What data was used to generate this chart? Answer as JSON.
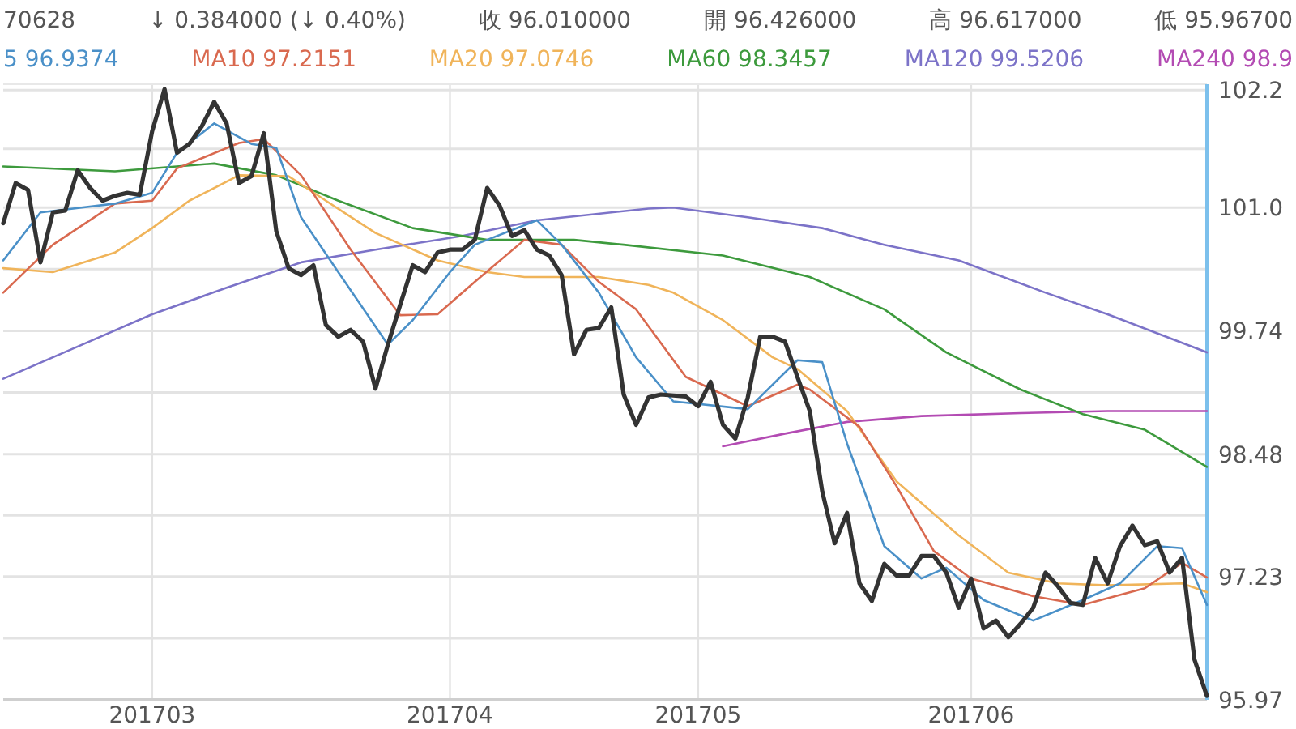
{
  "chart_data": {
    "type": "line",
    "annotations": [
      "70628",
      "↓ 0.384000 (↓ 0.40%)",
      "收 96.010000",
      "開 96.426000",
      "高 96.617000",
      "低 95.96700"
    ],
    "categories": [
      null,
      null,
      null,
      null,
      null,
      null,
      null,
      null,
      null,
      null,
      null,
      null,
      "201703",
      null,
      null,
      null,
      null,
      null,
      null,
      null,
      null,
      null,
      null,
      null,
      null,
      null,
      null,
      null,
      null,
      null,
      null,
      null,
      null,
      null,
      null,
      null,
      "201704",
      null,
      null,
      null,
      null,
      null,
      null,
      null,
      null,
      null,
      null,
      null,
      null,
      null,
      null,
      null,
      null,
      null,
      null,
      null,
      "201705",
      null,
      null,
      null,
      null,
      null,
      null,
      null,
      null,
      null,
      null,
      null,
      null,
      null,
      null,
      null,
      null,
      null,
      null,
      null,
      null,
      null,
      "201706",
      null,
      null,
      null,
      null,
      null,
      null,
      null,
      null,
      null,
      null,
      null,
      null,
      null,
      null,
      null,
      null,
      null,
      null,
      null
    ],
    "ylim": [
      95.97,
      102.26
    ],
    "yticks": [
      95.97,
      97.23,
      98.48,
      99.74,
      {
        "value": 101,
        "label": "101.0"
      },
      102.2
    ],
    "grid": true,
    "legend": "top",
    "series": [
      {
        "color": "#333333",
        "values": [
          100.84,
          101.25,
          101.18,
          100.44,
          100.95,
          100.97,
          101.38,
          101.2,
          101.07,
          101.12,
          101.15,
          101.13,
          101.78,
          102.21,
          101.56,
          101.65,
          101.83,
          102.08,
          101.86,
          101.25,
          101.32,
          101.76,
          100.76,
          100.38,
          100.31,
          100.41,
          99.8,
          99.68,
          99.75,
          99.63,
          99.15,
          99.6,
          100.01,
          100.41,
          100.34,
          100.54,
          100.57,
          100.57,
          100.67,
          101.2,
          101.02,
          100.71,
          100.77,
          100.57,
          100.51,
          100.31,
          99.5,
          99.75,
          99.77,
          99.98,
          99.09,
          98.78,
          99.06,
          99.09,
          99.08,
          99.07,
          98.97,
          99.22,
          98.78,
          98.64,
          99.06,
          99.68,
          99.68,
          99.63,
          99.27,
          98.92,
          98.1,
          97.57,
          97.88,
          97.16,
          96.98,
          97.36,
          97.24,
          97.24,
          97.44,
          97.44,
          97.27,
          96.91,
          97.21,
          96.7,
          96.78,
          96.61,
          96.75,
          96.91,
          97.27,
          97.13,
          96.96,
          96.94,
          97.42,
          97.16,
          97.54,
          97.75,
          97.55,
          97.59,
          97.27,
          97.42,
          96.38,
          96.01
        ]
      },
      {
        "name": "5 96.9374",
        "color": "#4a90c8",
        "values": [
          100.46,
          null,
          null,
          100.95,
          null,
          null,
          null,
          null,
          null,
          101.04,
          null,
          null,
          101.15,
          null,
          101.56,
          null,
          null,
          101.86,
          null,
          null,
          101.65,
          null,
          101.61,
          null,
          100.9,
          null,
          null,
          100.34,
          null,
          null,
          null,
          99.6,
          null,
          99.85,
          null,
          null,
          100.34,
          null,
          100.62,
          null,
          null,
          null,
          null,
          100.87,
          null,
          100.62,
          null,
          null,
          100.13,
          null,
          null,
          99.47,
          null,
          null,
          99.02,
          null,
          null,
          null,
          null,
          null,
          98.94,
          null,
          null,
          null,
          99.44,
          null,
          99.42,
          null,
          98.59,
          null,
          null,
          97.54,
          null,
          null,
          97.21,
          null,
          97.32,
          null,
          null,
          96.99,
          null,
          null,
          null,
          96.78,
          null,
          null,
          null,
          96.99,
          null,
          null,
          97.16,
          null,
          null,
          97.54,
          null,
          97.52,
          null,
          96.94
        ]
      },
      {
        "name": "MA10 97.2151",
        "color": "#d9694f",
        "values": [
          100.13,
          null,
          null,
          null,
          100.62,
          null,
          null,
          null,
          null,
          101.04,
          null,
          null,
          101.07,
          null,
          101.4,
          null,
          null,
          null,
          null,
          101.66,
          null,
          101.7,
          null,
          null,
          101.33,
          null,
          null,
          null,
          100.57,
          null,
          null,
          null,
          99.9,
          null,
          null,
          99.91,
          null,
          null,
          100.24,
          null,
          null,
          null,
          100.67,
          null,
          null,
          100.62,
          null,
          null,
          100.24,
          null,
          null,
          99.96,
          null,
          null,
          null,
          99.27,
          null,
          null,
          null,
          null,
          98.97,
          null,
          null,
          null,
          99.19,
          99.14,
          null,
          null,
          null,
          98.76,
          null,
          null,
          98.15,
          null,
          null,
          97.49,
          null,
          null,
          97.21,
          null,
          null,
          null,
          null,
          97.03,
          null,
          null,
          null,
          96.94,
          null,
          null,
          null,
          null,
          97.11,
          null,
          null,
          97.37,
          null,
          97.22
        ]
      },
      {
        "name": "MA20 97.0746",
        "color": "#f0b45a",
        "values": [
          100.38,
          null,
          null,
          null,
          100.34,
          null,
          null,
          null,
          null,
          100.54,
          null,
          null,
          100.79,
          null,
          null,
          101.07,
          null,
          null,
          null,
          101.33,
          null,
          null,
          null,
          101.32,
          null,
          null,
          101.07,
          null,
          null,
          null,
          100.74,
          null,
          null,
          null,
          null,
          100.46,
          null,
          null,
          null,
          100.34,
          null,
          null,
          100.29,
          null,
          null,
          null,
          null,
          null,
          100.29,
          null,
          null,
          null,
          100.21,
          null,
          100.13,
          null,
          null,
          null,
          99.85,
          null,
          null,
          null,
          99.47,
          null,
          99.35,
          null,
          null,
          null,
          98.92,
          null,
          null,
          null,
          98.2,
          null,
          null,
          null,
          null,
          97.65,
          null,
          null,
          null,
          97.27,
          null,
          null,
          null,
          97.16,
          null,
          null,
          null,
          97.14,
          null,
          null,
          null,
          null,
          null,
          97.16,
          null,
          97.07
        ]
      },
      {
        "name": "MA60 98.3457",
        "color": "#3d9a3d",
        "values": [
          101.42,
          null,
          null,
          null,
          null,
          null,
          null,
          null,
          null,
          101.37,
          null,
          null,
          null,
          null,
          null,
          null,
          null,
          101.45,
          null,
          null,
          null,
          null,
          101.33,
          null,
          null,
          null,
          null,
          101.07,
          null,
          null,
          null,
          null,
          null,
          100.79,
          null,
          null,
          null,
          null,
          null,
          100.67,
          null,
          null,
          null,
          null,
          null,
          null,
          100.67,
          null,
          null,
          null,
          100.62,
          null,
          null,
          null,
          null,
          null,
          null,
          null,
          100.51,
          null,
          null,
          null,
          null,
          null,
          null,
          100.29,
          null,
          null,
          null,
          null,
          null,
          99.96,
          null,
          null,
          null,
          null,
          99.52,
          null,
          null,
          null,
          null,
          null,
          99.14,
          null,
          null,
          null,
          null,
          98.89,
          null,
          null,
          null,
          null,
          98.73,
          null,
          null,
          null,
          null,
          98.35
        ]
      },
      {
        "name": "MA120 99.5206",
        "color": "#7c73c8",
        "values": [
          99.25,
          null,
          null,
          null,
          null,
          null,
          99.58,
          null,
          null,
          null,
          null,
          null,
          99.91,
          null,
          null,
          null,
          null,
          null,
          100.18,
          null,
          null,
          null,
          null,
          null,
          100.44,
          null,
          null,
          null,
          null,
          null,
          100.57,
          null,
          null,
          null,
          null,
          null,
          null,
          100.71,
          null,
          null,
          null,
          null,
          null,
          100.87,
          null,
          null,
          null,
          null,
          null,
          null,
          null,
          null,
          100.99,
          null,
          101.0,
          null,
          null,
          null,
          null,
          null,
          100.9,
          null,
          null,
          null,
          null,
          null,
          100.79,
          null,
          null,
          null,
          null,
          100.62,
          null,
          null,
          null,
          null,
          null,
          100.46,
          null,
          null,
          null,
          null,
          null,
          null,
          100.13,
          null,
          null,
          null,
          null,
          99.91,
          null,
          null,
          null,
          null,
          null,
          null,
          null,
          99.52
        ]
      },
      {
        "name": "MA240 98.9",
        "color": "#b34bb3",
        "values": [
          null,
          null,
          null,
          null,
          null,
          null,
          null,
          null,
          null,
          null,
          null,
          null,
          null,
          null,
          null,
          null,
          null,
          null,
          null,
          null,
          null,
          null,
          null,
          null,
          null,
          null,
          null,
          null,
          null,
          null,
          null,
          null,
          null,
          null,
          null,
          null,
          null,
          null,
          null,
          null,
          null,
          null,
          null,
          null,
          null,
          null,
          null,
          null,
          null,
          null,
          null,
          null,
          null,
          null,
          null,
          null,
          null,
          null,
          98.56,
          null,
          null,
          null,
          null,
          98.69,
          null,
          null,
          null,
          null,
          98.81,
          null,
          null,
          null,
          null,
          null,
          98.87,
          null,
          null,
          null,
          null,
          null,
          null,
          null,
          98.9,
          null,
          null,
          null,
          null,
          null,
          null,
          98.92,
          null,
          null,
          null,
          null,
          null,
          null,
          null,
          98.92
        ]
      }
    ]
  }
}
